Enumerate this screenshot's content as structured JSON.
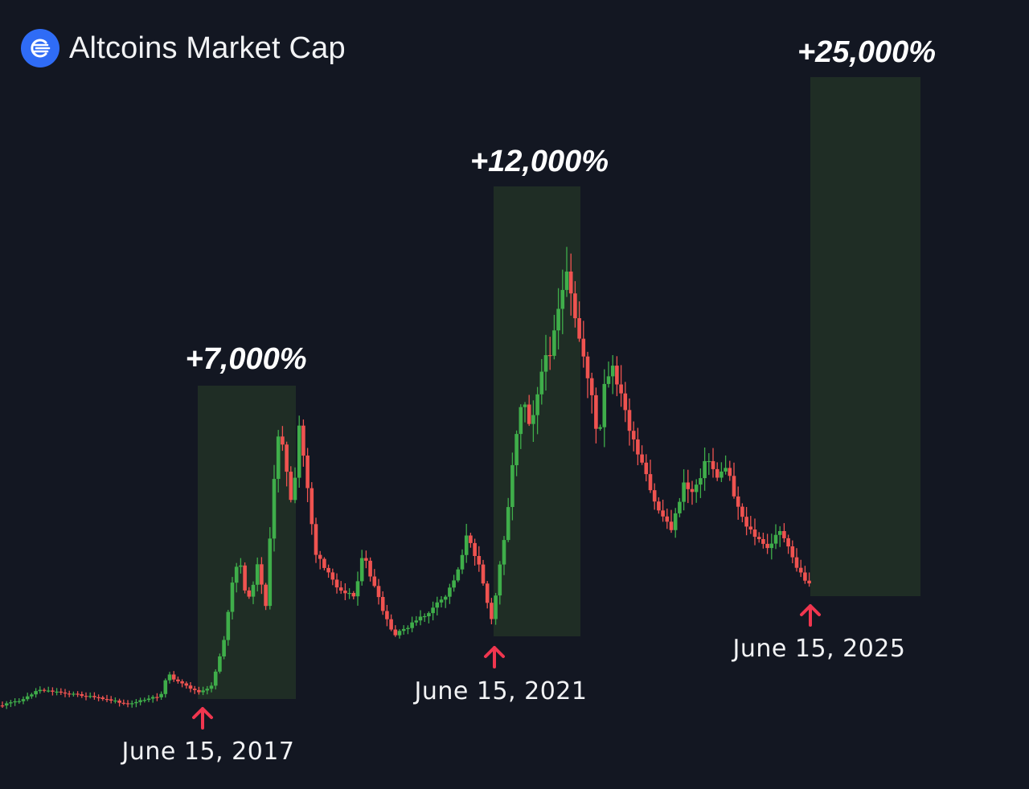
{
  "title": "Altcoins Market Cap",
  "logo_icon": "exchange-logo-icon",
  "colors": {
    "background": "#131722",
    "bull": "#3fae4a",
    "bear": "#ef5350",
    "highlight": "#1f2d25",
    "arrow": "#f0364f",
    "logo": "#2f6cf6"
  },
  "chart_data": {
    "type": "candlestick",
    "title": "Altcoins Market Cap",
    "ranges": [
      {
        "label": "+7,000%",
        "start": "June 15, 2017"
      },
      {
        "label": "+12,000%",
        "start": "June 15, 2021"
      },
      {
        "label": "+25,000%",
        "start": "June 15, 2025"
      }
    ],
    "markers": [
      "June 15, 2017",
      "June 15, 2021",
      "June 15, 2025"
    ]
  },
  "annotations": {
    "pct_2017": "+7,000%",
    "pct_2021": "+12,000%",
    "pct_2025": "+25,000%",
    "date_2017": "June 15, 2017",
    "date_2021": "June 15, 2021",
    "date_2025": "June 15, 2025"
  }
}
